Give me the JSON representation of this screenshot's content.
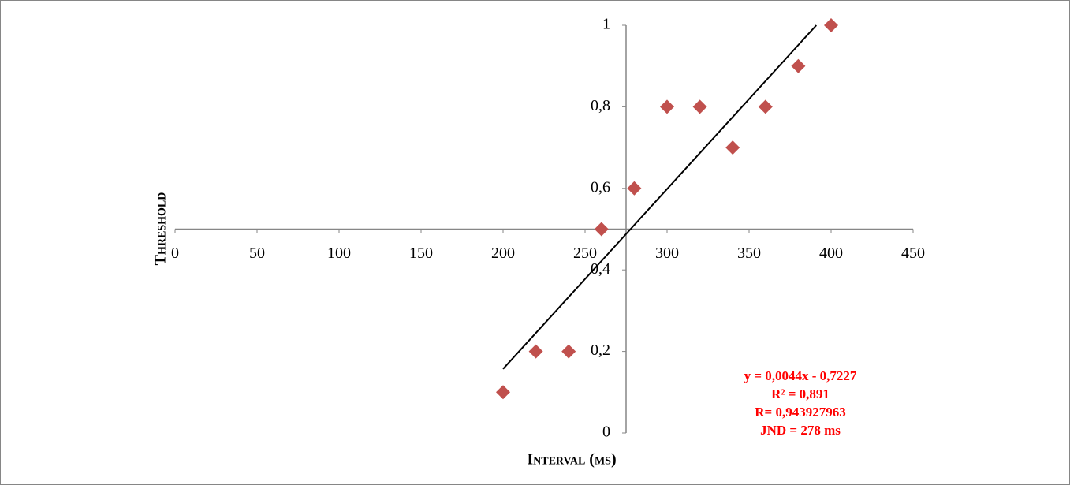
{
  "chart_data": {
    "type": "scatter",
    "x_label": "Interval (ms)",
    "y_label": "Threshold",
    "series": [
      {
        "name": "Threshold",
        "color": "#c0504d",
        "x": [
          200,
          220,
          240,
          260,
          280,
          300,
          320,
          340,
          360,
          380,
          400
        ],
        "values": [
          0.1,
          0.2,
          0.2,
          0.5,
          0.6,
          0.8,
          0.8,
          0.7,
          0.8,
          0.9,
          1
        ]
      }
    ],
    "trendline": {
      "color": "#000000",
      "x": [
        200,
        391
      ],
      "values": [
        0.157,
        1
      ]
    },
    "annotations": [
      "y = 0,0044x - 0,7227",
      "R² = 0,891",
      "R= 0,943927963",
      "JND = 278 ms"
    ],
    "xlim": [
      0,
      450
    ],
    "xticks": [
      0,
      50,
      100,
      150,
      200,
      250,
      300,
      350,
      400,
      450
    ],
    "ylim": [
      0,
      1
    ],
    "yticks": [
      0,
      {
        "value": 0.2,
        "label": "0,2"
      },
      {
        "value": 0.4,
        "label": "0,4"
      },
      {
        "value": 0.6,
        "label": "0,6"
      },
      {
        "value": 0.8,
        "label": "0,8"
      },
      1
    ],
    "x_axis_crosses_at_y": 0.5,
    "y_axis_crosses_at_x": 275,
    "grid": false
  }
}
